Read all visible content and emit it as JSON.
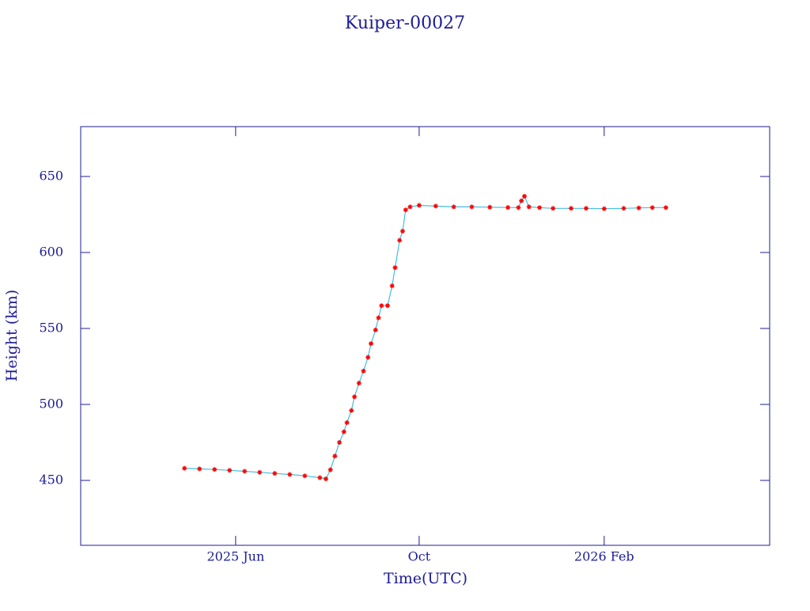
{
  "chart_data": {
    "type": "line",
    "title": "Kuiper-00027",
    "x_label": "Time(UTC)",
    "y_label": "Height (km)",
    "x": [
      "2025-04-28",
      "2025-05-08",
      "2025-05-18",
      "2025-05-28",
      "2025-06-07",
      "2025-06-17",
      "2025-06-27",
      "2025-07-07",
      "2025-07-17",
      "2025-07-27",
      "2025-07-31",
      "2025-08-03",
      "2025-08-06",
      "2025-08-09",
      "2025-08-12",
      "2025-08-14",
      "2025-08-17",
      "2025-08-19",
      "2025-08-22",
      "2025-08-25",
      "2025-08-28",
      "2025-08-30",
      "2025-09-02",
      "2025-09-04",
      "2025-09-06",
      "2025-09-10",
      "2025-09-13",
      "2025-09-15",
      "2025-09-18",
      "2025-09-20",
      "2025-09-22",
      "2025-09-25",
      "2025-10-01",
      "2025-10-12",
      "2025-10-24",
      "2025-11-05",
      "2025-11-17",
      "2025-11-29",
      "2025-12-06",
      "2025-12-08",
      "2025-12-10",
      "2025-12-13",
      "2025-12-20",
      "2025-12-29",
      "2026-01-10",
      "2026-01-20",
      "2026-02-01",
      "2026-02-14",
      "2026-02-24",
      "2026-03-05",
      "2026-03-14"
    ],
    "series": [
      {
        "name": "Height",
        "color": "#ff0000",
        "line_color": "#40c0e0",
        "values": [
          458,
          457.6,
          457.2,
          456.6,
          456,
          455.3,
          454.6,
          453.9,
          453,
          451.8,
          451,
          457,
          466,
          475,
          482,
          488,
          496,
          505,
          514,
          522,
          531,
          540,
          549,
          557,
          565,
          565,
          578,
          590,
          608,
          614,
          628,
          630,
          631,
          630.5,
          630,
          630,
          629.8,
          629.6,
          629.5,
          634,
          637,
          630,
          629.5,
          629,
          629,
          629,
          628.8,
          629,
          629.3,
          629.5,
          629.5
        ]
      }
    ],
    "xlim": [
      "2025-02-18",
      "2026-05-22"
    ],
    "xticks": [
      {
        "value": "2025-06-01",
        "label": "2025 Jun"
      },
      {
        "value": "2025-10-01",
        "label": "Oct"
      },
      {
        "value": "2026-02-01",
        "label": "2026 Feb"
      }
    ],
    "ylim": [
      407.3,
      682.8
    ],
    "yticks": [
      450,
      500,
      550,
      600,
      650
    ]
  }
}
